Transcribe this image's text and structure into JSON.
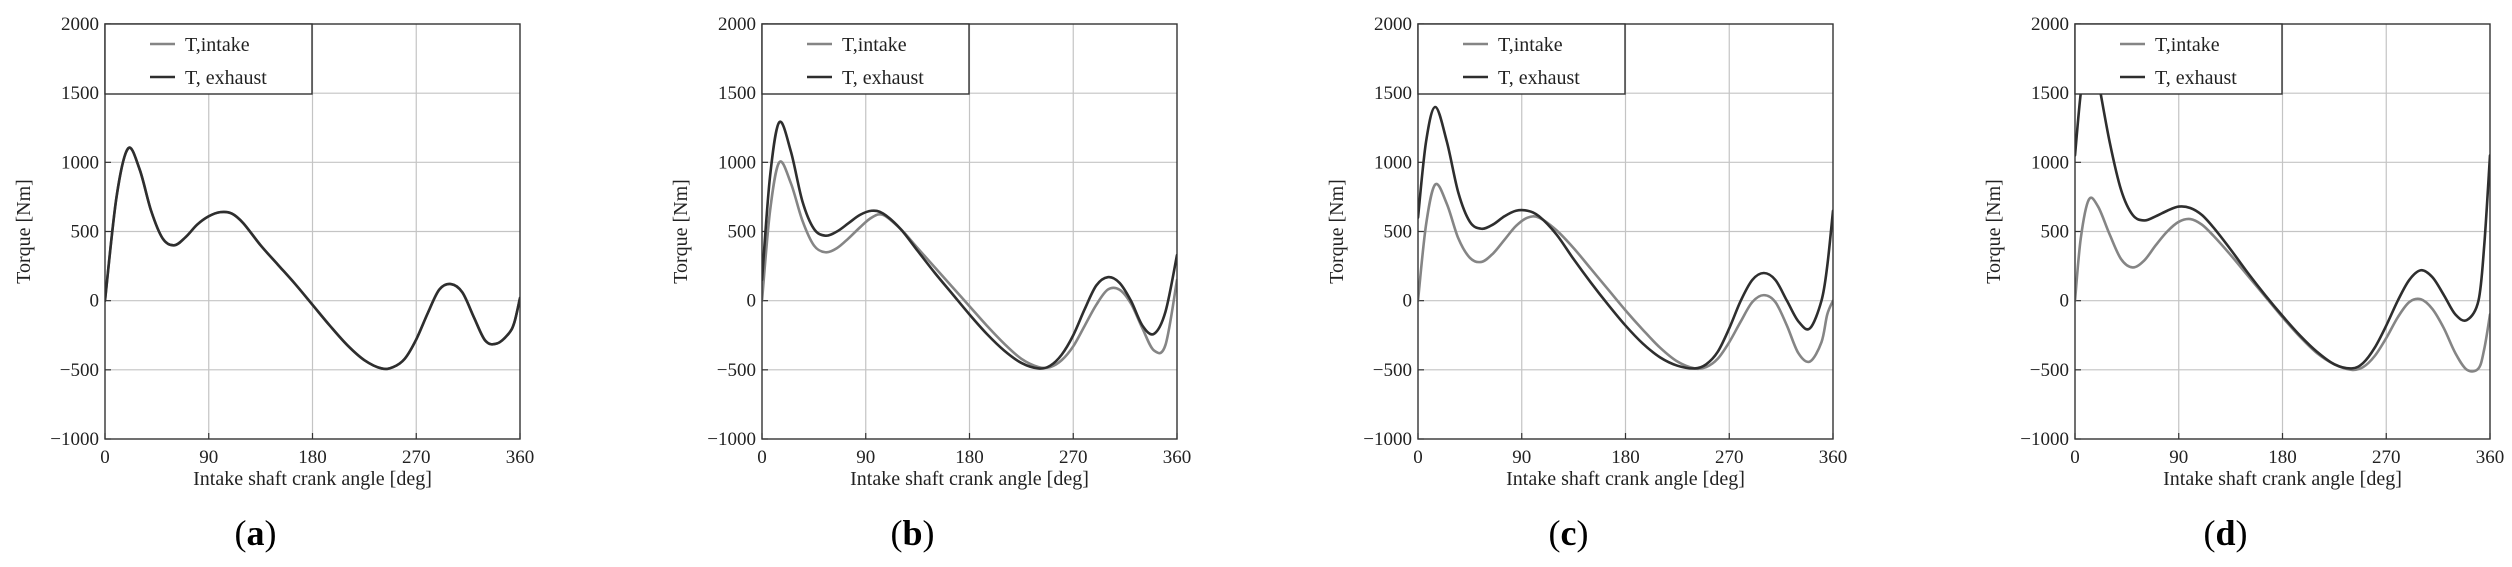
{
  "chart_data": [
    {
      "panel_label": "a",
      "type": "line",
      "xlabel": "Intake shaft crank angle [deg]",
      "ylabel": "Torque [Nm]",
      "xlim": [
        0,
        360
      ],
      "ylim": [
        -1000,
        2000
      ],
      "xticks": [
        0,
        90,
        180,
        270,
        360
      ],
      "yticks": [
        -1000,
        -500,
        0,
        500,
        1000,
        1500,
        2000
      ],
      "grid": true,
      "legend_position": "top-left",
      "series": [
        {
          "name": "T,intake",
          "color": "#858585",
          "x": [
            0,
            10,
            20,
            30,
            40,
            50,
            60,
            70,
            80,
            90,
            100,
            110,
            120,
            135,
            150,
            165,
            180,
            195,
            210,
            225,
            240,
            250,
            260,
            270,
            280,
            290,
            300,
            310,
            320,
            330,
            340,
            350,
            355,
            360
          ],
          "y": [
            0,
            750,
            1100,
            950,
            650,
            450,
            400,
            460,
            550,
            610,
            640,
            630,
            560,
            400,
            260,
            120,
            -30,
            -180,
            -320,
            -430,
            -490,
            -480,
            -420,
            -280,
            -90,
            80,
            120,
            60,
            -120,
            -290,
            -310,
            -240,
            -160,
            20
          ]
        },
        {
          "name": "T, exhaust",
          "color": "#2e2e2e",
          "x": [
            0,
            10,
            20,
            30,
            40,
            50,
            60,
            70,
            80,
            90,
            100,
            110,
            120,
            135,
            150,
            165,
            180,
            195,
            210,
            225,
            240,
            250,
            260,
            270,
            280,
            290,
            300,
            310,
            320,
            330,
            340,
            350,
            355,
            360
          ],
          "y": [
            0,
            750,
            1100,
            950,
            650,
            450,
            400,
            460,
            550,
            610,
            640,
            630,
            560,
            400,
            260,
            120,
            -30,
            -180,
            -320,
            -430,
            -490,
            -480,
            -420,
            -280,
            -90,
            80,
            120,
            60,
            -120,
            -290,
            -310,
            -240,
            -160,
            20
          ]
        }
      ]
    },
    {
      "panel_label": "b",
      "type": "line",
      "xlabel": "Intake shaft crank angle [deg]",
      "ylabel": "Torque [Nm]",
      "xlim": [
        0,
        360
      ],
      "ylim": [
        -1000,
        2000
      ],
      "xticks": [
        0,
        90,
        180,
        270,
        360
      ],
      "yticks": [
        -1000,
        -500,
        0,
        500,
        1000,
        1500,
        2000
      ],
      "grid": true,
      "legend_position": "top-left",
      "series": [
        {
          "name": "T,intake",
          "color": "#858585",
          "x": [
            0,
            7,
            15,
            25,
            35,
            45,
            55,
            65,
            75,
            85,
            95,
            105,
            120,
            135,
            150,
            165,
            180,
            195,
            210,
            225,
            240,
            250,
            260,
            270,
            280,
            290,
            300,
            310,
            320,
            330,
            340,
            350,
            360
          ],
          "y": [
            0,
            650,
            1000,
            850,
            580,
            400,
            350,
            380,
            450,
            530,
            600,
            620,
            520,
            380,
            240,
            100,
            -40,
            -180,
            -310,
            -420,
            -480,
            -480,
            -430,
            -330,
            -180,
            -30,
            80,
            80,
            -20,
            -200,
            -360,
            -320,
            150
          ]
        },
        {
          "name": "T, exhaust",
          "color": "#2e2e2e",
          "x": [
            0,
            7,
            15,
            25,
            35,
            45,
            55,
            65,
            75,
            85,
            95,
            105,
            120,
            135,
            150,
            165,
            180,
            195,
            210,
            225,
            240,
            250,
            260,
            270,
            280,
            290,
            300,
            310,
            320,
            330,
            340,
            350,
            360
          ],
          "y": [
            150,
            900,
            1290,
            1080,
            720,
            520,
            470,
            500,
            560,
            620,
            650,
            630,
            520,
            360,
            200,
            50,
            -100,
            -240,
            -360,
            -450,
            -490,
            -470,
            -390,
            -250,
            -60,
            110,
            170,
            130,
            0,
            -180,
            -240,
            -80,
            330
          ]
        }
      ]
    },
    {
      "panel_label": "c",
      "type": "line",
      "xlabel": "Intake shaft crank angle [deg]",
      "ylabel": "Torque [Nm]",
      "xlim": [
        0,
        360
      ],
      "ylim": [
        -1000,
        2000
      ],
      "xticks": [
        0,
        90,
        180,
        270,
        360
      ],
      "yticks": [
        -1000,
        -500,
        0,
        500,
        1000,
        1500,
        2000
      ],
      "grid": true,
      "legend_position": "top-left",
      "series": [
        {
          "name": "T,intake",
          "color": "#858585",
          "x": [
            0,
            7,
            15,
            25,
            35,
            45,
            55,
            65,
            75,
            85,
            95,
            105,
            120,
            135,
            150,
            165,
            180,
            195,
            210,
            225,
            240,
            250,
            260,
            270,
            280,
            290,
            300,
            310,
            320,
            330,
            340,
            350,
            355,
            360
          ],
          "y": [
            0,
            550,
            840,
            700,
            450,
            310,
            280,
            340,
            440,
            540,
            600,
            600,
            510,
            380,
            230,
            80,
            -70,
            -210,
            -340,
            -440,
            -490,
            -480,
            -420,
            -300,
            -150,
            -10,
            40,
            -10,
            -180,
            -380,
            -440,
            -300,
            -100,
            0
          ]
        },
        {
          "name": "T, exhaust",
          "color": "#2e2e2e",
          "x": [
            0,
            7,
            15,
            25,
            35,
            45,
            55,
            65,
            75,
            85,
            95,
            105,
            120,
            135,
            150,
            165,
            180,
            195,
            210,
            225,
            240,
            250,
            260,
            270,
            280,
            290,
            300,
            310,
            320,
            330,
            340,
            350,
            355,
            360
          ],
          "y": [
            600,
            1150,
            1400,
            1150,
            780,
            570,
            520,
            550,
            610,
            650,
            650,
            610,
            480,
            300,
            130,
            -30,
            -180,
            -310,
            -410,
            -470,
            -490,
            -460,
            -370,
            -200,
            0,
            150,
            200,
            150,
            0,
            -150,
            -200,
            0,
            250,
            650
          ]
        }
      ]
    },
    {
      "panel_label": "d",
      "type": "line",
      "xlabel": "Intake shaft crank angle [deg]",
      "ylabel": "Torque [Nm]",
      "xlim": [
        0,
        360
      ],
      "ylim": [
        -1000,
        2000
      ],
      "xticks": [
        0,
        90,
        180,
        270,
        360
      ],
      "yticks": [
        -1000,
        -500,
        0,
        500,
        1000,
        1500,
        2000
      ],
      "grid": true,
      "legend_position": "top-left",
      "series": [
        {
          "name": "T,intake",
          "color": "#858585",
          "x": [
            0,
            5,
            12,
            20,
            30,
            40,
            50,
            60,
            70,
            80,
            90,
            100,
            110,
            120,
            135,
            150,
            165,
            180,
            195,
            210,
            225,
            240,
            250,
            260,
            270,
            280,
            290,
            300,
            310,
            320,
            330,
            340,
            350,
            355,
            360
          ],
          "y": [
            0,
            450,
            730,
            680,
            480,
            300,
            240,
            290,
            400,
            500,
            570,
            590,
            550,
            470,
            330,
            180,
            30,
            -120,
            -260,
            -380,
            -460,
            -500,
            -480,
            -400,
            -270,
            -120,
            -10,
            10,
            -60,
            -200,
            -380,
            -500,
            -490,
            -350,
            -100
          ]
        },
        {
          "name": "T, exhaust",
          "color": "#2e2e2e",
          "x": [
            0,
            5,
            10,
            15,
            20,
            30,
            40,
            50,
            60,
            70,
            80,
            90,
            100,
            110,
            120,
            135,
            150,
            165,
            180,
            195,
            210,
            225,
            240,
            250,
            260,
            270,
            280,
            290,
            300,
            310,
            320,
            330,
            340,
            350,
            355,
            360
          ],
          "y": [
            1050,
            1500,
            1750,
            1800,
            1600,
            1150,
            800,
            620,
            580,
            610,
            650,
            680,
            670,
            620,
            530,
            370,
            200,
            40,
            -110,
            -250,
            -370,
            -460,
            -490,
            -450,
            -340,
            -180,
            0,
            150,
            220,
            170,
            40,
            -100,
            -140,
            0,
            400,
            1050
          ]
        }
      ]
    }
  ]
}
